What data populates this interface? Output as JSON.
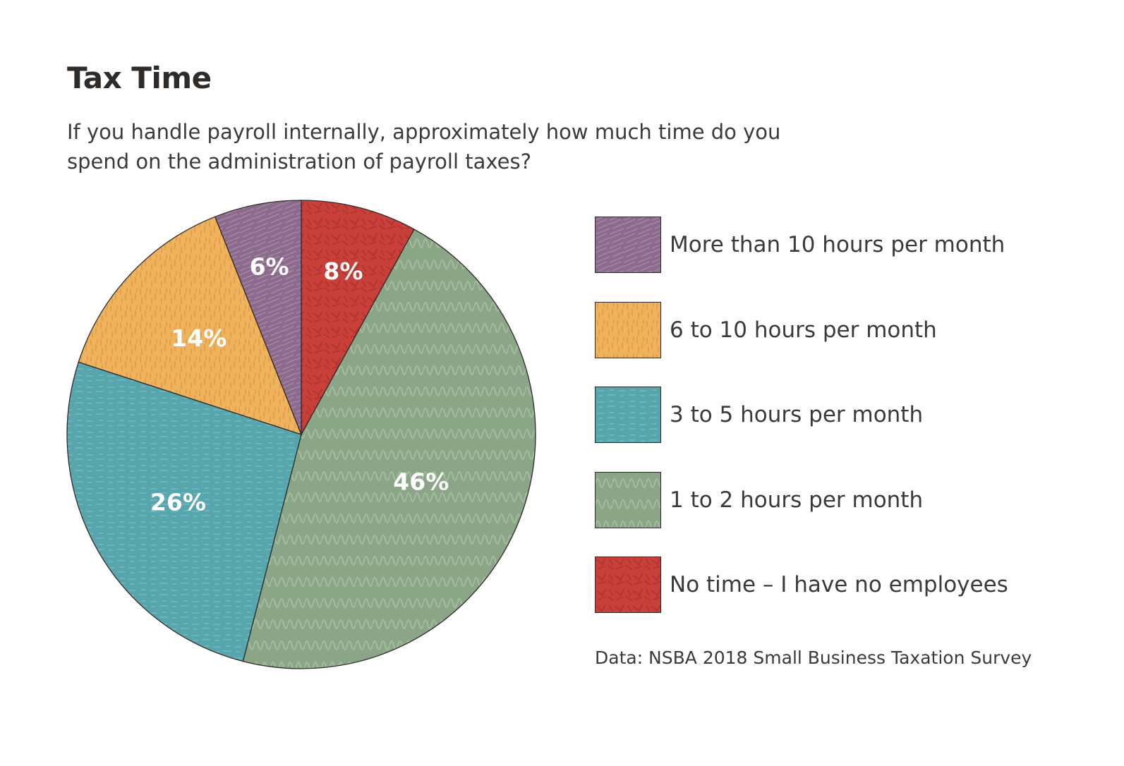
{
  "chart_data": {
    "type": "pie",
    "title": "Tax Time",
    "subtitle": "If you handle payroll internally, approximately how much time do you spend on the administration of payroll taxes?",
    "categories": [
      "No time – I have no employees",
      "1 to 2 hours per month",
      "3 to 5 hours per month",
      "6 to 10 hours per month",
      "More than 10 hours per month"
    ],
    "values": [
      8,
      46,
      26,
      14,
      6
    ],
    "value_labels": [
      "8%",
      "46%",
      "26%",
      "14%",
      "6%"
    ],
    "colors": [
      "#c9403a",
      "#8ba587",
      "#57a6ae",
      "#efb35e",
      "#8c6a8d"
    ],
    "legend_order": [
      4,
      3,
      2,
      1,
      0
    ],
    "legend_position": "right",
    "start": "12 o'clock, clockwise"
  },
  "source": "Data: NSBA 2018 Small Business Taxation Survey"
}
